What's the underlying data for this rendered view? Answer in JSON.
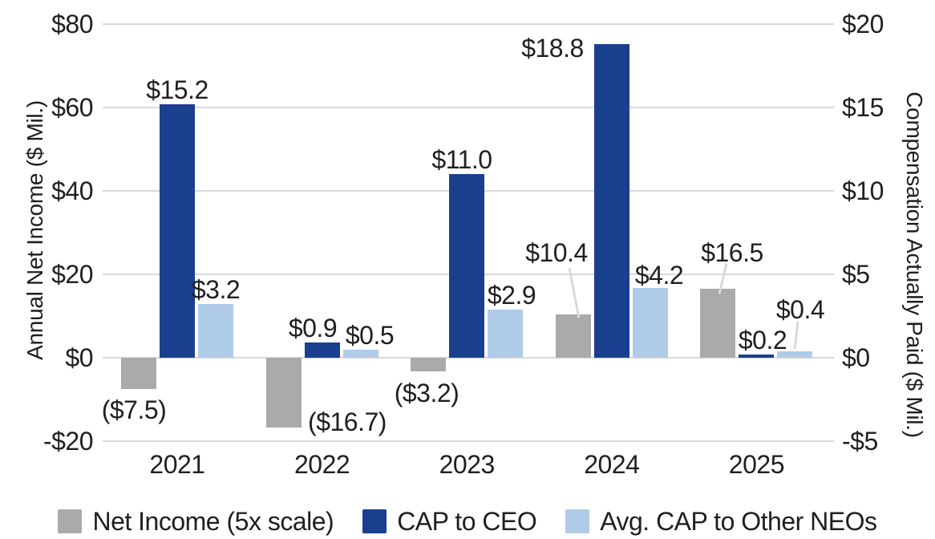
{
  "chart_data": {
    "type": "bar",
    "title": "",
    "categories": [
      "2021",
      "2022",
      "2023",
      "2024",
      "2025"
    ],
    "series": [
      {
        "name": "Net Income (5x scale)",
        "axis": "left",
        "color": "#a9aaac",
        "values": [
          -7.5,
          -16.7,
          -3.2,
          10.4,
          16.5
        ],
        "labels": [
          "($7.5)",
          "($16.7)",
          "($3.2)",
          "$10.4",
          "$16.5"
        ]
      },
      {
        "name": "CAP to CEO",
        "axis": "right",
        "color": "#1b3f8f",
        "values": [
          15.2,
          0.9,
          11.0,
          18.8,
          0.2
        ],
        "labels": [
          "$15.2",
          "$0.9",
          "$11.0",
          "$18.8",
          "$0.2"
        ]
      },
      {
        "name": "Avg. CAP to Other NEOs",
        "axis": "right",
        "color": "#b0cbe8",
        "values": [
          3.2,
          0.5,
          2.9,
          4.2,
          0.4
        ],
        "labels": [
          "$3.2",
          "$0.5",
          "$2.9",
          "$4.2",
          "$0.4"
        ]
      }
    ],
    "left_axis": {
      "title": "Annual Net Income ($ Mil.)",
      "min": -20,
      "max": 80,
      "ticks": [
        80,
        60,
        40,
        20,
        0,
        -20
      ],
      "tick_labels": [
        "$80",
        "$60",
        "$40",
        "$20",
        "$0",
        "-$20"
      ]
    },
    "right_axis": {
      "title": "Compensation Actually Paid ($ Mil.)",
      "min": -5,
      "max": 20,
      "ticks": [
        20,
        15,
        10,
        5,
        0,
        -5
      ],
      "tick_labels": [
        "$20",
        "$15",
        "$10",
        "$5",
        "$0",
        "-$5"
      ]
    },
    "grid": true,
    "legend_position": "bottom",
    "colors": {
      "gridline": "#d9d9da",
      "text": "#1f1f1f",
      "callout_line": "#d9d9da",
      "background": "#ffffff"
    }
  }
}
